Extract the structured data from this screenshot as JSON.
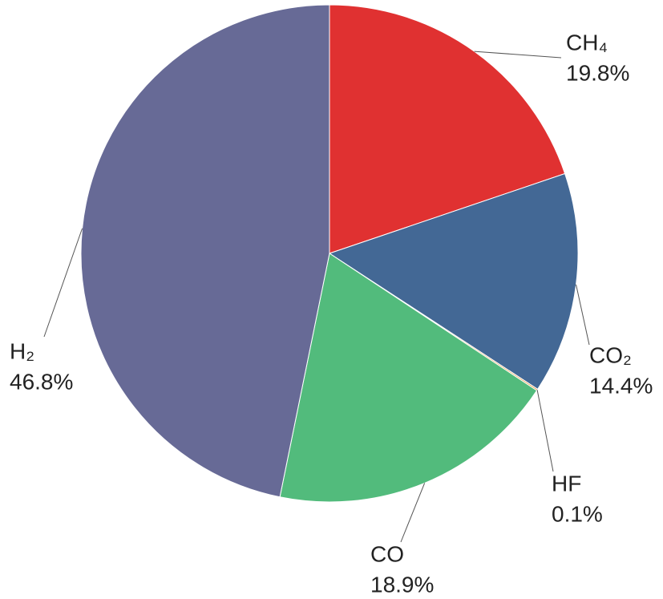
{
  "chart_data": {
    "type": "pie",
    "categories": [
      "CH₄",
      "CO₂",
      "HF",
      "CO",
      "H₂"
    ],
    "values": [
      19.8,
      14.4,
      0.1,
      18.9,
      46.8
    ],
    "value_labels": [
      "19.8%",
      "14.4%",
      "0.1%",
      "18.9%",
      "46.8%"
    ],
    "colors": [
      "#e03131",
      "#436895",
      "#e8a050",
      "#52bb7c",
      "#676a96"
    ]
  }
}
